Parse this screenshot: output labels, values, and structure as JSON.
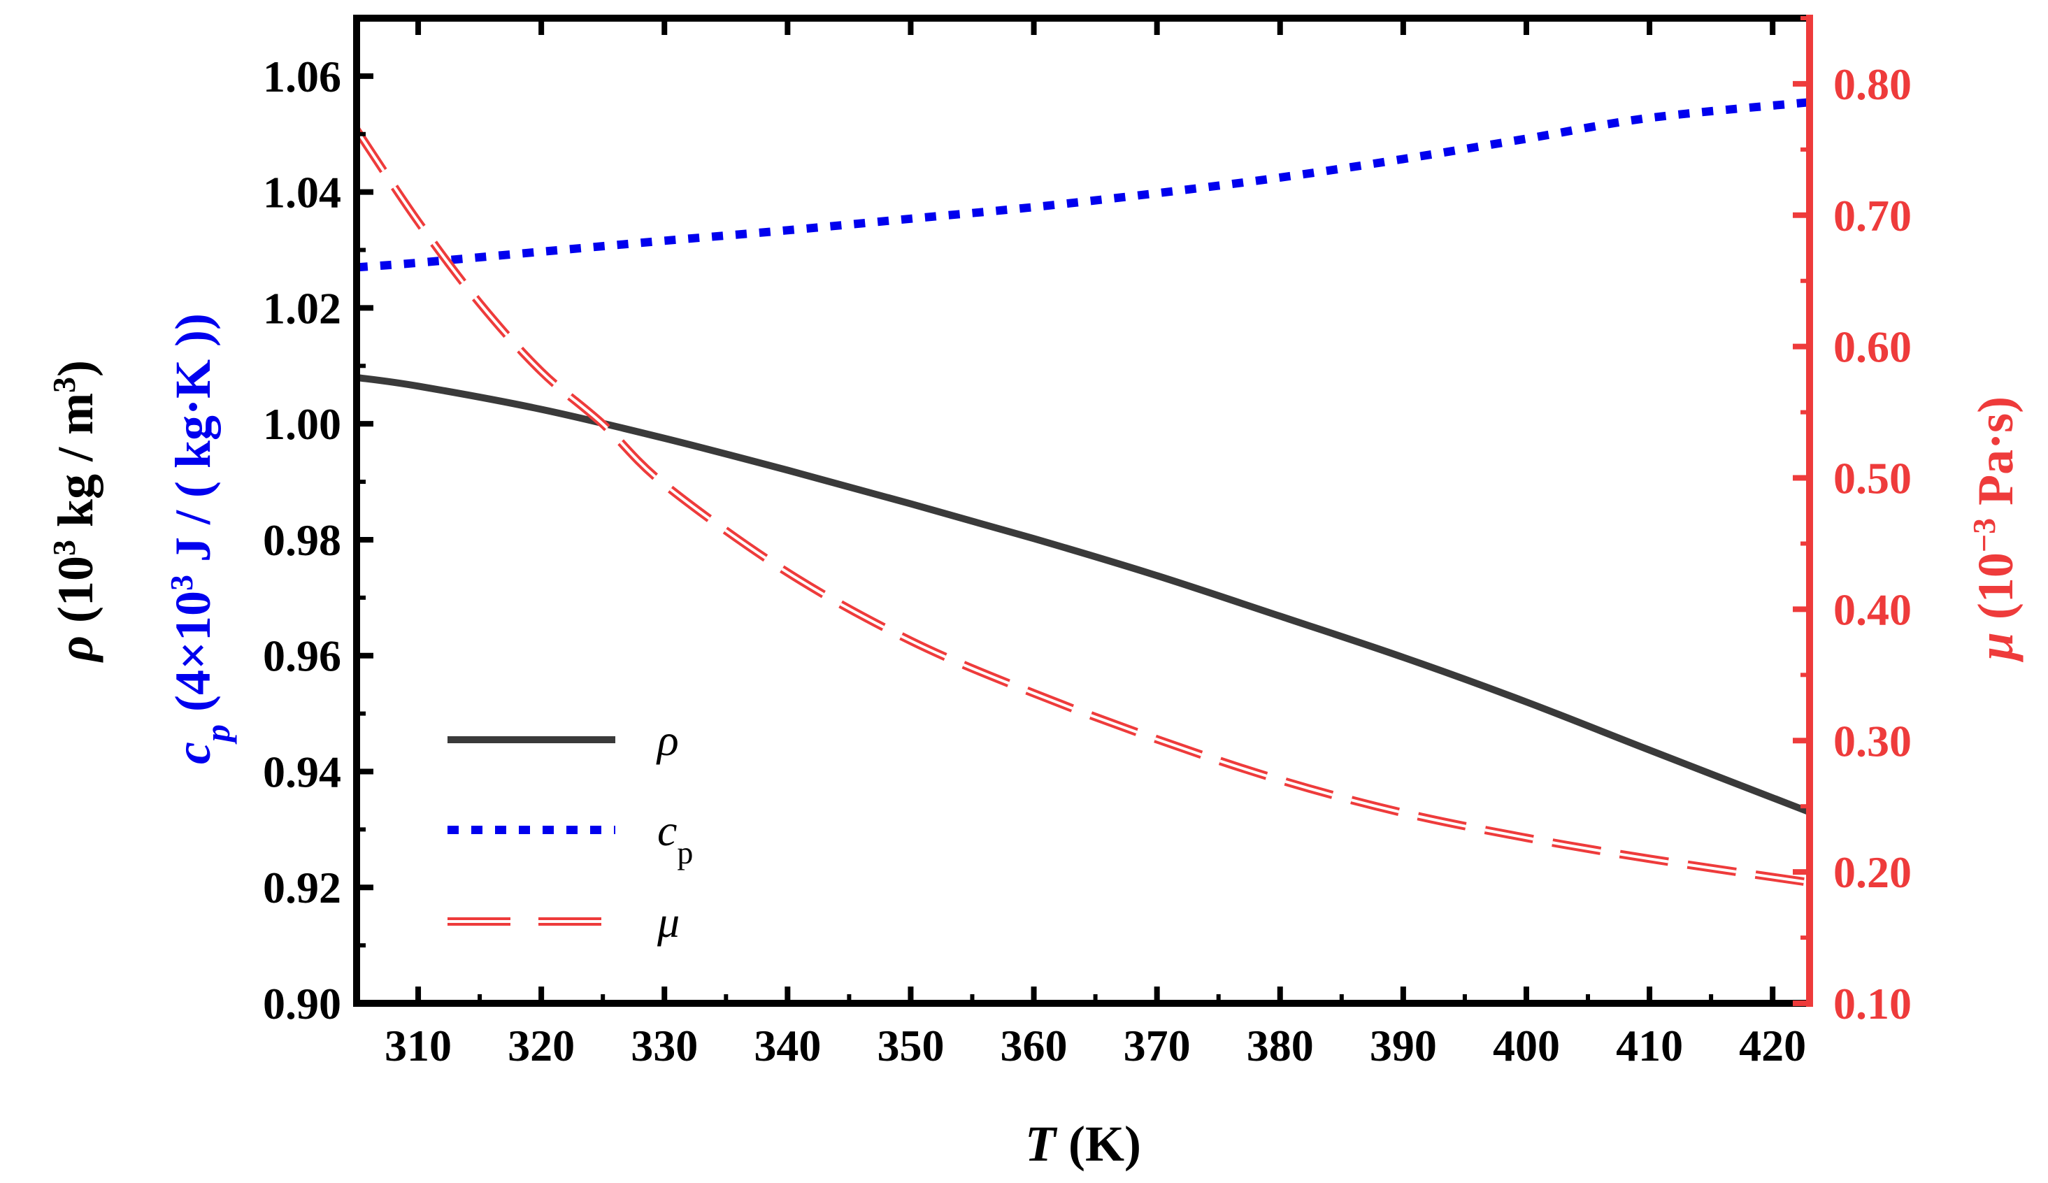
{
  "chart_data": {
    "type": "line",
    "x_axis": {
      "label_italic": "T",
      "label_rest": " (K)",
      "range": [
        305,
        423
      ],
      "ticks": [
        310,
        320,
        330,
        340,
        350,
        360,
        370,
        380,
        390,
        400,
        410,
        420
      ],
      "tick_labels": [
        "310",
        "320",
        "330",
        "340",
        "350",
        "360",
        "370",
        "380",
        "390",
        "400",
        "410",
        "420"
      ]
    },
    "y_left": {
      "range": [
        0.9,
        1.07
      ],
      "ticks": [
        0.9,
        0.92,
        0.94,
        0.96,
        0.98,
        1.0,
        1.02,
        1.04,
        1.06
      ],
      "tick_labels": [
        "0.90",
        "0.92",
        "0.94",
        "0.96",
        "0.98",
        "1.00",
        "1.02",
        "1.04",
        "1.06"
      ],
      "label_rho": {
        "symbol": "ρ",
        "text_a": " (10",
        "sup": "3",
        "text_b": " kg / m",
        "sup2": "3",
        "text_c": ")",
        "color": "#000000"
      },
      "label_cp": {
        "symbol": "c",
        "sub": "p",
        "text_a": " (4×10",
        "sup": "3",
        "text_b": " J / ( kg·K ))",
        "color": "#0000ee"
      }
    },
    "y_right": {
      "range": [
        0.1,
        0.85
      ],
      "ticks": [
        0.1,
        0.2,
        0.3,
        0.4,
        0.5,
        0.6,
        0.7,
        0.8
      ],
      "tick_labels": [
        "0.10",
        "0.20",
        "0.30",
        "0.40",
        "0.50",
        "0.60",
        "0.70",
        "0.80"
      ],
      "label_mu": {
        "symbol": "μ",
        "text_a": " (10",
        "sup": "−3",
        "text_b": " Pa·s)",
        "color": "#ee3b3b"
      }
    },
    "series": [
      {
        "name": "ρ",
        "axis": "left",
        "style": "solid",
        "color": "#3a3a3a",
        "x": [
          305,
          310,
          320,
          330,
          340,
          350,
          360,
          370,
          380,
          390,
          400,
          410,
          423
        ],
        "y": [
          1.008,
          1.0065,
          1.0025,
          0.9975,
          0.992,
          0.9862,
          0.9802,
          0.9738,
          0.9668,
          0.9597,
          0.952,
          0.9437,
          0.933
        ]
      },
      {
        "name": "c",
        "subscript": "p",
        "axis": "left",
        "style": "dotted",
        "color": "#0000ee",
        "x": [
          305,
          310,
          320,
          330,
          340,
          350,
          360,
          370,
          380,
          390,
          400,
          410,
          423
        ],
        "y": [
          1.027,
          1.0278,
          1.0297,
          1.0316,
          1.0334,
          1.0354,
          1.0374,
          1.0398,
          1.0425,
          1.0457,
          1.0492,
          1.0528,
          1.0555
        ]
      },
      {
        "name": "μ",
        "axis": "right",
        "style": "dashed-double",
        "color": "#ee3b3b",
        "x": [
          305,
          310,
          315,
          320,
          325,
          330,
          340,
          350,
          360,
          370,
          380,
          390,
          400,
          410,
          423
        ],
        "y": [
          0.765,
          0.695,
          0.633,
          0.581,
          0.541,
          0.495,
          0.428,
          0.376,
          0.336,
          0.301,
          0.27,
          0.245,
          0.226,
          0.21,
          0.192
        ]
      }
    ],
    "legend": {
      "position": "bottom-left",
      "entries": [
        {
          "label": "ρ",
          "sub": ""
        },
        {
          "label": "c",
          "sub": "p"
        },
        {
          "label": "μ",
          "sub": ""
        }
      ]
    }
  }
}
